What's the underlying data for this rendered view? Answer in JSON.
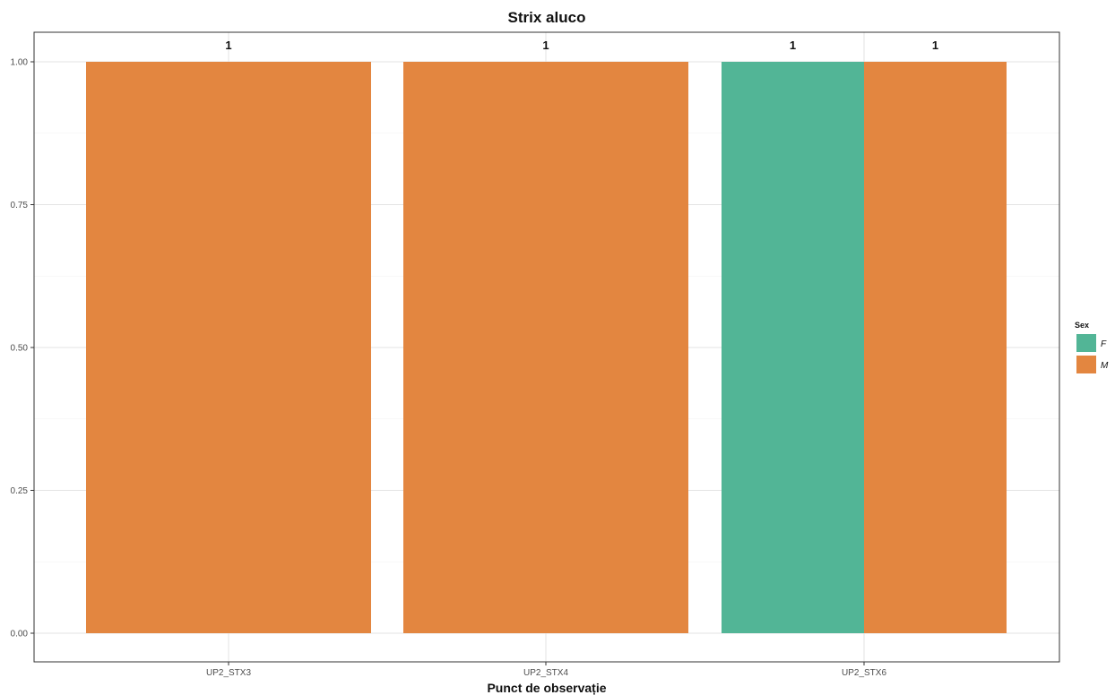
{
  "chart_data": {
    "type": "bar",
    "title": "Strix aluco",
    "xlabel": "Punct de observație",
    "ylabel": "",
    "categories": [
      "UP2_STX3",
      "UP2_STX4",
      "UP2_STX6"
    ],
    "ylim": [
      0,
      1.05
    ],
    "yticks": [
      "0.00",
      "0.25",
      "0.50",
      "0.75",
      "1.00"
    ],
    "ytick_values": [
      0,
      0.25,
      0.5,
      0.75,
      1.0
    ],
    "grid": true,
    "position": "dodge",
    "legend": {
      "title": "Sex",
      "placement": "right",
      "entries": [
        {
          "label": "F",
          "color": "#52b596"
        },
        {
          "label": "M",
          "color": "#e38640"
        }
      ]
    },
    "bars": [
      {
        "category": "UP2_STX3",
        "sex": "M",
        "value": 1,
        "label": "1",
        "slot": 0,
        "slots": 1
      },
      {
        "category": "UP2_STX4",
        "sex": "M",
        "value": 1,
        "label": "1",
        "slot": 0,
        "slots": 1
      },
      {
        "category": "UP2_STX6",
        "sex": "F",
        "value": 1,
        "label": "1",
        "slot": 0,
        "slots": 2
      },
      {
        "category": "UP2_STX6",
        "sex": "M",
        "value": 1,
        "label": "1",
        "slot": 1,
        "slots": 2
      }
    ]
  }
}
